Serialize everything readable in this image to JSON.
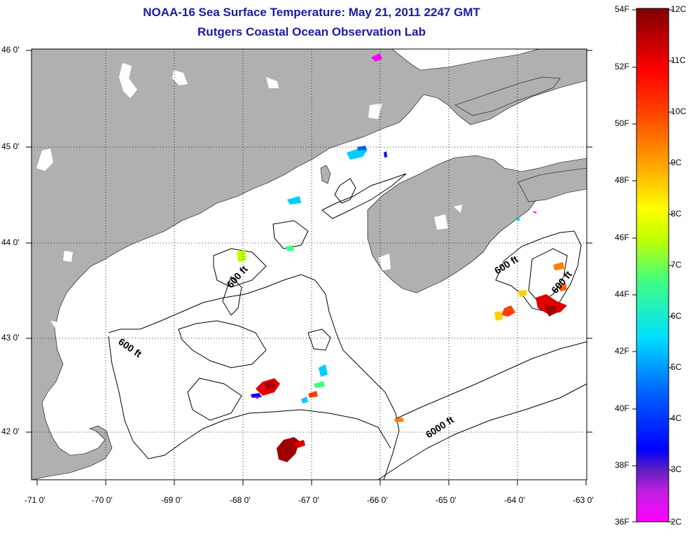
{
  "title": {
    "line1": "NOAA-16 Sea Surface Temperature:  May 21, 2011 2247 GMT",
    "line2": "Rutgers Coastal Ocean Observation Lab"
  },
  "map": {
    "lon_labels": [
      "-71 0'",
      "-70 0'",
      "-69 0'",
      "-68 0'",
      "-67 0'",
      "-66 0'",
      "-65 0'",
      "-64 0'",
      "-63 0'"
    ],
    "lat_labels": [
      "46 0'",
      "45 0'",
      "44 0'",
      "43 0'",
      "42 0'"
    ],
    "contour_labels": [
      "600 ft",
      "600 ft",
      "600 ft",
      "600 ft",
      "6000 ft"
    ],
    "colors": {
      "land": "#b0b0b0",
      "ocean": "#ffffff",
      "contour": "#000000"
    }
  },
  "colorbar": {
    "f_labels": [
      "54F",
      "52F",
      "50F",
      "48F",
      "46F",
      "44F",
      "42F",
      "40F",
      "38F",
      "36F"
    ],
    "c_labels": [
      "12C",
      "11C",
      "10C",
      "9C",
      "8C",
      "7C",
      "6C",
      "5C",
      "4C",
      "3C",
      "2C"
    ],
    "colors": [
      "#ff00ff",
      "#8020c0",
      "#0000ff",
      "#0080ff",
      "#00ffff",
      "#40ff80",
      "#c0ff00",
      "#ffff00",
      "#ffa000",
      "#ff4000",
      "#ff0000",
      "#800000"
    ]
  }
}
